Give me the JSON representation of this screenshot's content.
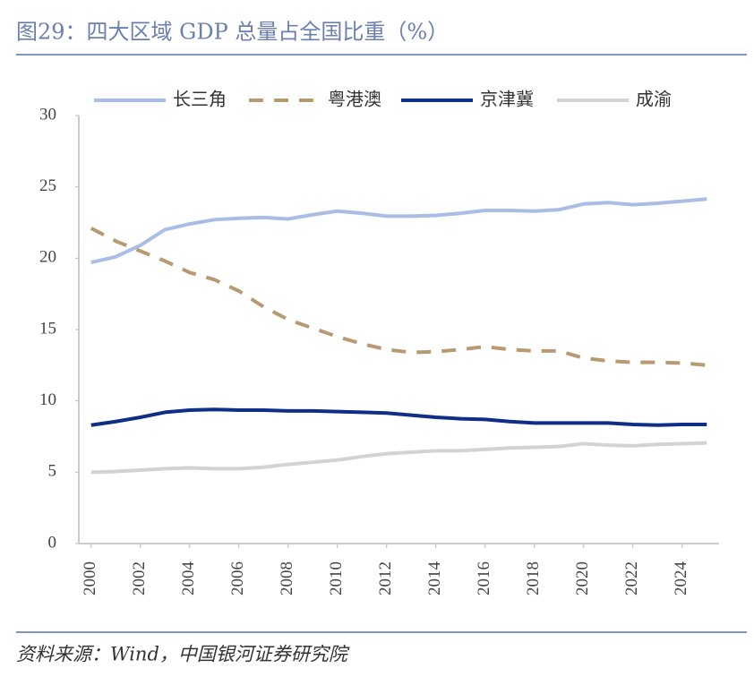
{
  "chart_data": {
    "type": "line",
    "title": "图29：四大区域 GDP 总量占全国比重（%）",
    "source": "资料来源：Wind，中国银河证券研究院",
    "x": [
      2000,
      2001,
      2002,
      2003,
      2004,
      2005,
      2006,
      2007,
      2008,
      2009,
      2010,
      2011,
      2012,
      2013,
      2014,
      2015,
      2016,
      2017,
      2018,
      2019,
      2020,
      2021,
      2022,
      2023,
      2024,
      2025
    ],
    "series": [
      {
        "name": "长三角",
        "color": "#a9bde6",
        "dashed": false,
        "values": [
          19.7,
          20.1,
          20.9,
          22.0,
          22.4,
          22.7,
          22.8,
          22.85,
          22.75,
          23.05,
          23.3,
          23.15,
          22.95,
          22.95,
          23.0,
          23.15,
          23.35,
          23.35,
          23.3,
          23.4,
          23.8,
          23.9,
          23.75,
          23.85,
          24.0,
          24.15
        ]
      },
      {
        "name": "粤港澳",
        "color": "#b89a72",
        "dashed": true,
        "values": [
          22.1,
          21.2,
          20.5,
          19.8,
          19.0,
          18.5,
          17.7,
          16.6,
          15.7,
          15.1,
          14.5,
          14.0,
          13.6,
          13.4,
          13.45,
          13.6,
          13.8,
          13.6,
          13.5,
          13.5,
          13.0,
          12.8,
          12.7,
          12.7,
          12.65,
          12.5
        ]
      },
      {
        "name": "京津冀",
        "color": "#0f2e87",
        "dashed": false,
        "values": [
          8.3,
          8.55,
          8.85,
          9.2,
          9.35,
          9.4,
          9.35,
          9.35,
          9.3,
          9.3,
          9.25,
          9.2,
          9.15,
          9.0,
          8.85,
          8.75,
          8.7,
          8.55,
          8.45,
          8.45,
          8.45,
          8.45,
          8.35,
          8.3,
          8.35,
          8.35
        ]
      },
      {
        "name": "成渝",
        "color": "#d3d3d3",
        "dashed": false,
        "values": [
          5.0,
          5.05,
          5.15,
          5.25,
          5.3,
          5.25,
          5.25,
          5.35,
          5.55,
          5.7,
          5.85,
          6.1,
          6.3,
          6.4,
          6.5,
          6.5,
          6.6,
          6.7,
          6.75,
          6.8,
          7.0,
          6.9,
          6.85,
          6.95,
          7.0,
          7.05
        ]
      }
    ],
    "xlim": [
      1999.5,
      2025.5
    ],
    "xticks": [
      2000,
      2002,
      2004,
      2006,
      2008,
      2010,
      2012,
      2014,
      2016,
      2018,
      2020,
      2022,
      2024
    ],
    "ylim": [
      0,
      30
    ],
    "yticks": [
      0,
      5,
      10,
      15,
      20,
      25,
      30
    ],
    "legend": "top",
    "grid": false
  }
}
